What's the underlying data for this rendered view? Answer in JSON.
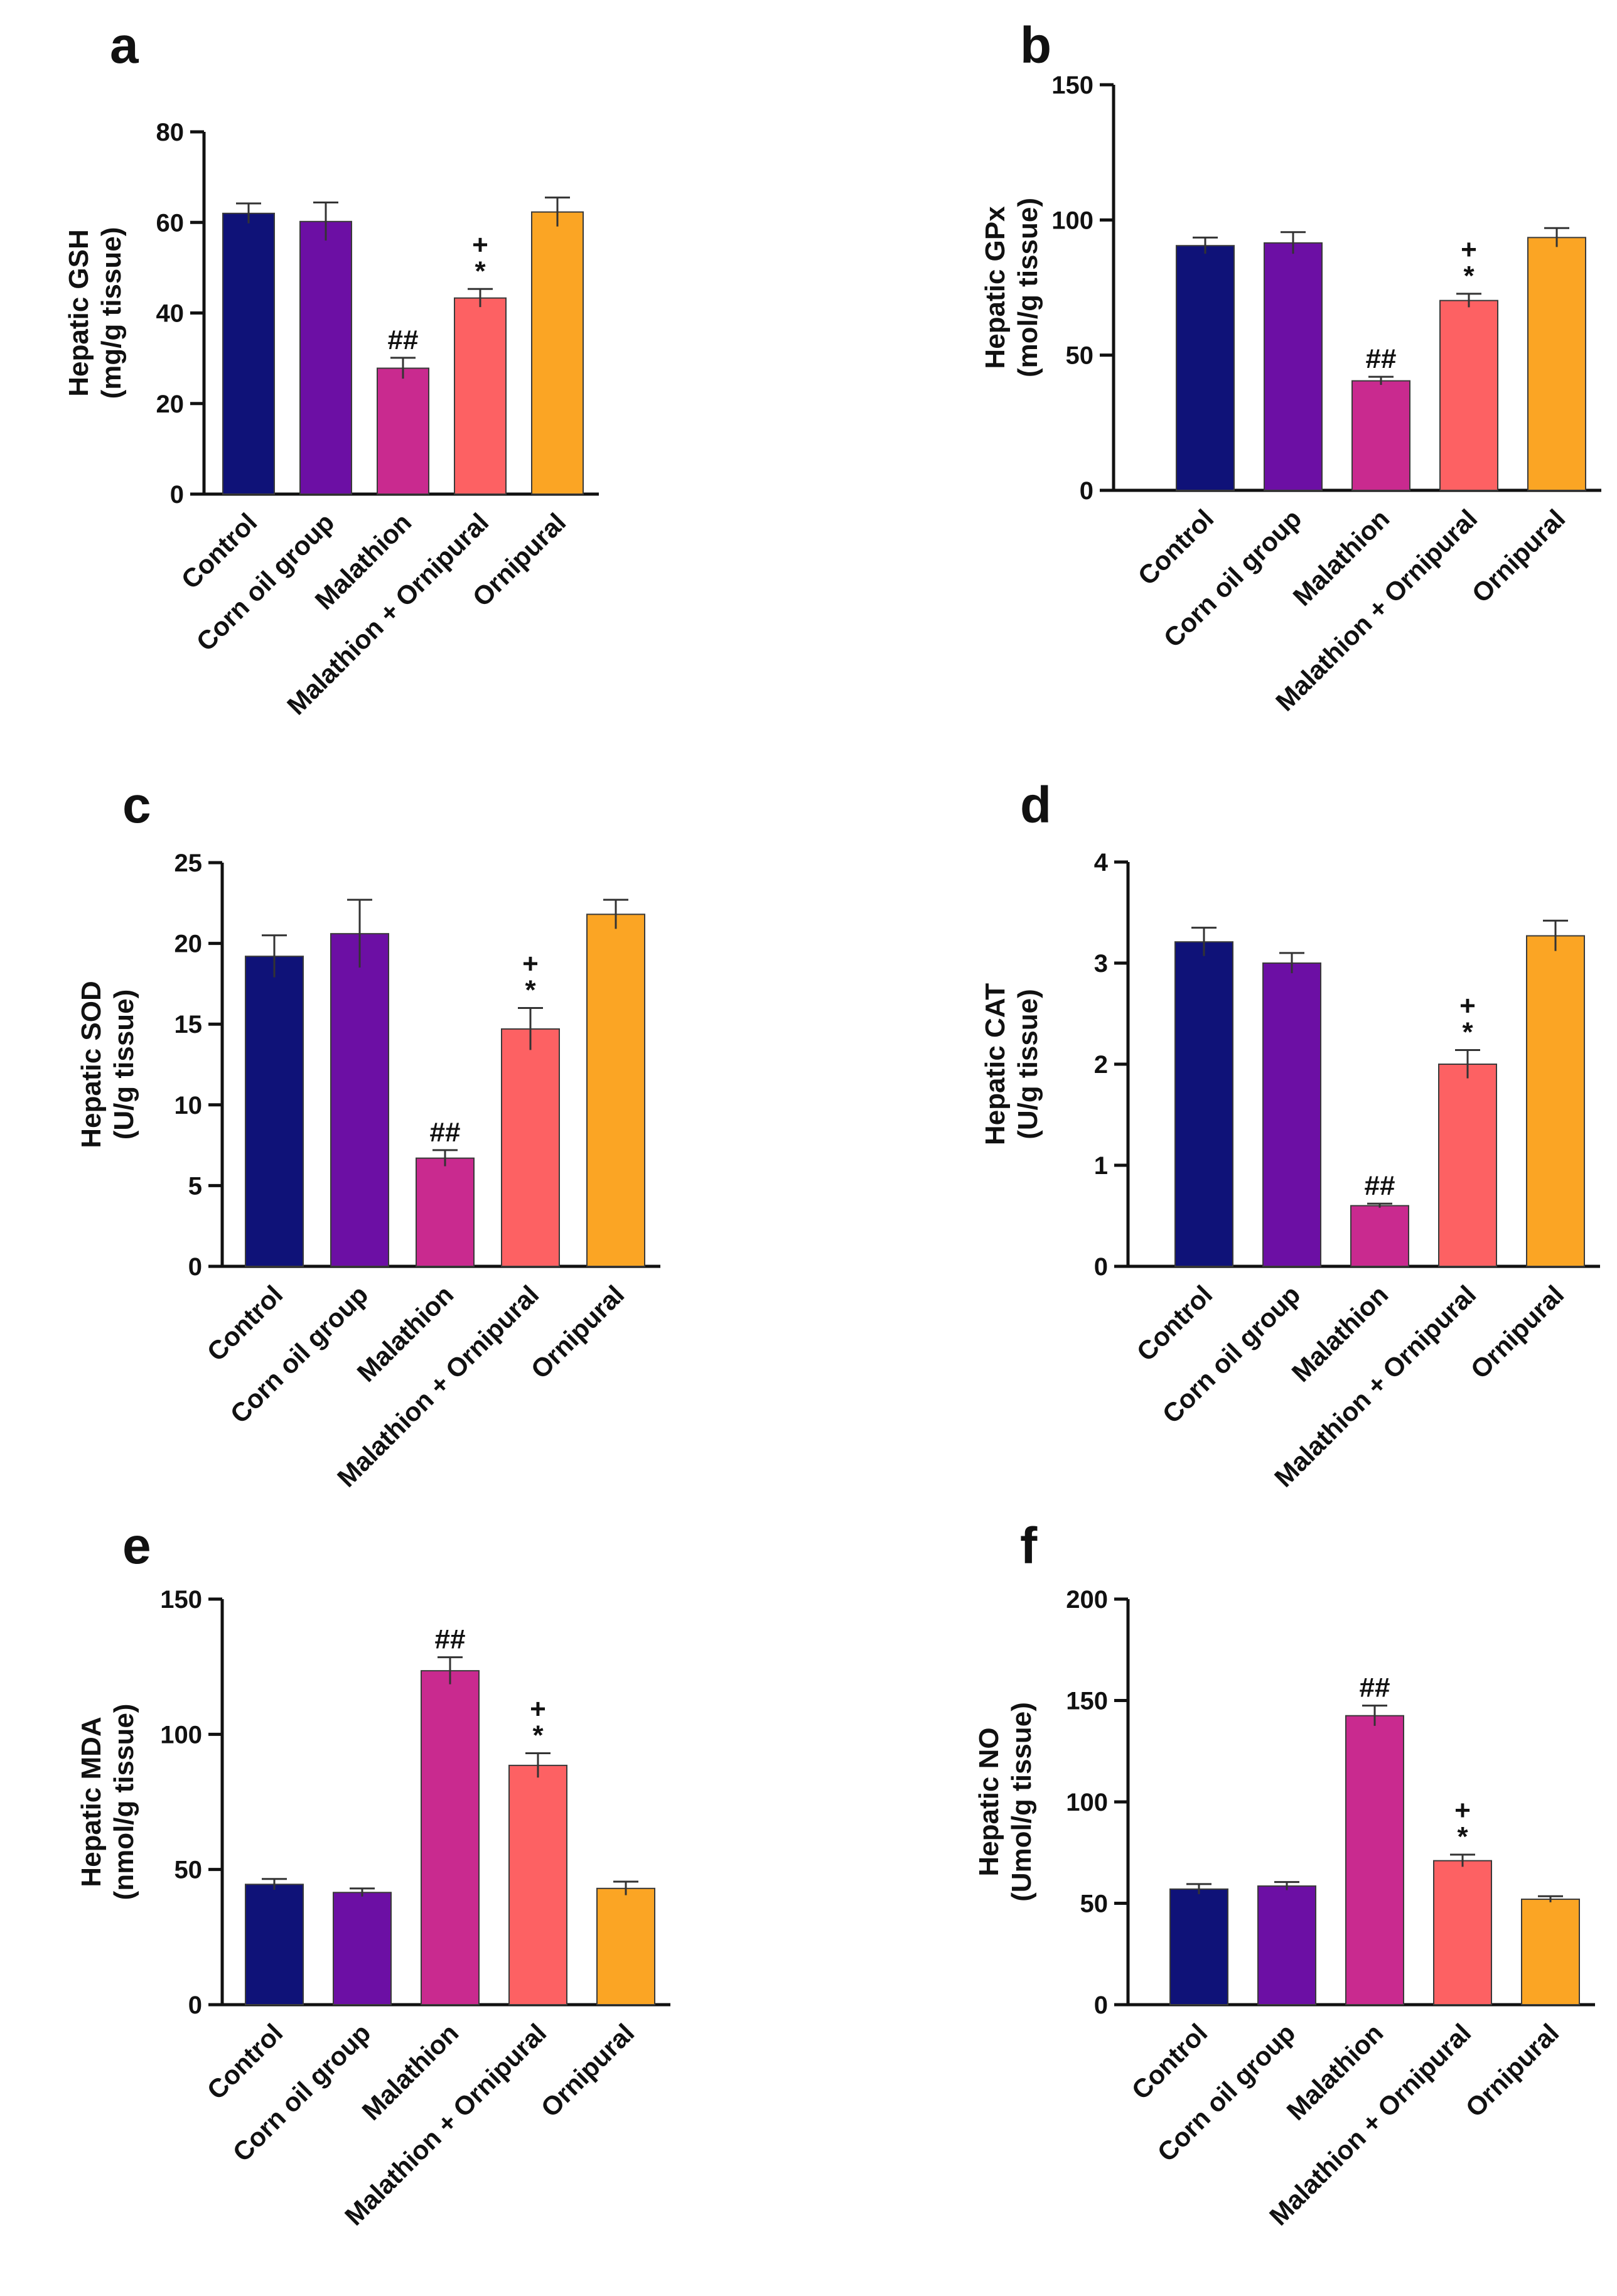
{
  "figure": {
    "description": "Six bar-chart panels of hepatic oxidative stress markers"
  },
  "chart_data": [
    {
      "panel": "a",
      "type": "bar",
      "title": "",
      "ylabel_line1": "Hepatic GSH",
      "ylabel_line2": "(mg/g tissue)",
      "categories": [
        "Control",
        "Corn oil group",
        "Malathion",
        "Malathion + Ornipural",
        "Ornipural"
      ],
      "values": [
        62,
        60.2,
        27.8,
        43.3,
        62.3
      ],
      "errors": [
        2.2,
        4.2,
        2.3,
        2.0,
        3.2
      ],
      "colors": [
        "#0f1278",
        "#6c0fa4",
        "#c92a8f",
        "#fd6163",
        "#fba524"
      ],
      "annotations": [
        {
          "index": 2,
          "marks": [
            "##"
          ]
        },
        {
          "index": 3,
          "marks": [
            "+",
            "*"
          ]
        }
      ],
      "ylim": [
        0,
        80
      ],
      "yticks": [
        0,
        20,
        40,
        60,
        80
      ],
      "ytick_labels": [
        "0",
        "20",
        "40",
        "60",
        "80"
      ]
    },
    {
      "panel": "b",
      "type": "bar",
      "title": "",
      "ylabel_line1": "Hepatic GPx",
      "ylabel_line2": "(mol/g tissue)",
      "categories": [
        "Control",
        "Corn oil group",
        "Malathion",
        "Malathion + Ornipural",
        "Ornipural"
      ],
      "values": [
        90.5,
        91.5,
        40.5,
        70.2,
        93.5
      ],
      "errors": [
        3,
        4,
        1.5,
        2.5,
        3.5
      ],
      "colors": [
        "#0f1278",
        "#6c0fa4",
        "#c92a8f",
        "#fd6163",
        "#fba524"
      ],
      "annotations": [
        {
          "index": 2,
          "marks": [
            "##"
          ]
        },
        {
          "index": 3,
          "marks": [
            "+",
            "*"
          ]
        }
      ],
      "ylim": [
        0,
        150
      ],
      "yticks": [
        0,
        50,
        100,
        150
      ],
      "ytick_labels": [
        "0",
        "50",
        "100",
        "150"
      ]
    },
    {
      "panel": "c",
      "type": "bar",
      "title": "",
      "ylabel_line1": "Hepatic SOD",
      "ylabel_line2": "(U/g tissue)",
      "categories": [
        "Control",
        "Corn oil group",
        "Malathion",
        "Malathion + Ornipural",
        "Ornipural"
      ],
      "values": [
        19.2,
        20.6,
        6.7,
        14.7,
        21.8
      ],
      "errors": [
        1.3,
        2.1,
        0.5,
        1.3,
        0.9
      ],
      "colors": [
        "#0f1278",
        "#6c0fa4",
        "#c92a8f",
        "#fd6163",
        "#fba524"
      ],
      "annotations": [
        {
          "index": 2,
          "marks": [
            "##"
          ]
        },
        {
          "index": 3,
          "marks": [
            "+",
            "*"
          ]
        }
      ],
      "ylim": [
        0,
        25
      ],
      "yticks": [
        0,
        5,
        10,
        15,
        20,
        25
      ],
      "ytick_labels": [
        "0",
        "5",
        "10",
        "15",
        "20",
        "25"
      ]
    },
    {
      "panel": "d",
      "type": "bar",
      "title": "",
      "ylabel_line1": "Hepatic CAT",
      "ylabel_line2": "(U/g tissue)",
      "categories": [
        "Control",
        "Corn oil group",
        "Malathion",
        "Malathion + Ornipural",
        "Ornipural"
      ],
      "values": [
        3.21,
        3.0,
        0.6,
        2.0,
        3.27
      ],
      "errors": [
        0.14,
        0.1,
        0.02,
        0.14,
        0.15
      ],
      "colors": [
        "#0f1278",
        "#6c0fa4",
        "#c92a8f",
        "#fd6163",
        "#fba524"
      ],
      "annotations": [
        {
          "index": 2,
          "marks": [
            "##"
          ]
        },
        {
          "index": 3,
          "marks": [
            "+",
            "*"
          ]
        }
      ],
      "ylim": [
        0,
        4
      ],
      "yticks": [
        0,
        1,
        2,
        3,
        4
      ],
      "ytick_labels": [
        "0",
        "1",
        "2",
        "3",
        "4"
      ]
    },
    {
      "panel": "e",
      "type": "bar",
      "title": "",
      "ylabel_line1": "Hepatic MDA",
      "ylabel_line2": "(nmol/g tissue)",
      "categories": [
        "Control",
        "Corn oil group",
        "Malathion",
        "Malathion + Ornipural",
        "Ornipural"
      ],
      "values": [
        44.5,
        41.5,
        123.5,
        88.5,
        43
      ],
      "errors": [
        2,
        1.5,
        5,
        4.5,
        2.5
      ],
      "colors": [
        "#0f1278",
        "#6c0fa4",
        "#c92a8f",
        "#fd6163",
        "#fba524"
      ],
      "annotations": [
        {
          "index": 2,
          "marks": [
            "##"
          ]
        },
        {
          "index": 3,
          "marks": [
            "+",
            "*"
          ]
        }
      ],
      "ylim": [
        0,
        150
      ],
      "yticks": [
        0,
        50,
        100,
        150
      ],
      "ytick_labels": [
        "0",
        "50",
        "100",
        "150"
      ]
    },
    {
      "panel": "f",
      "type": "bar",
      "title": "",
      "ylabel_line1": "Hepatic NO",
      "ylabel_line2": "(Umol/g tissue)",
      "categories": [
        "Control",
        "Corn oil group",
        "Malathion",
        "Malathion + Ornipural",
        "Ornipural"
      ],
      "values": [
        57,
        58.5,
        142.5,
        71,
        52
      ],
      "errors": [
        2.5,
        2,
        5,
        3,
        1.5
      ],
      "colors": [
        "#0f1278",
        "#6c0fa4",
        "#c92a8f",
        "#fd6163",
        "#fba524"
      ],
      "annotations": [
        {
          "index": 2,
          "marks": [
            "##"
          ]
        },
        {
          "index": 3,
          "marks": [
            "+",
            "*"
          ]
        }
      ],
      "ylim": [
        0,
        200
      ],
      "yticks": [
        0,
        50,
        100,
        150,
        200
      ],
      "ytick_labels": [
        "0",
        "50",
        "100",
        "150",
        "200"
      ]
    }
  ]
}
